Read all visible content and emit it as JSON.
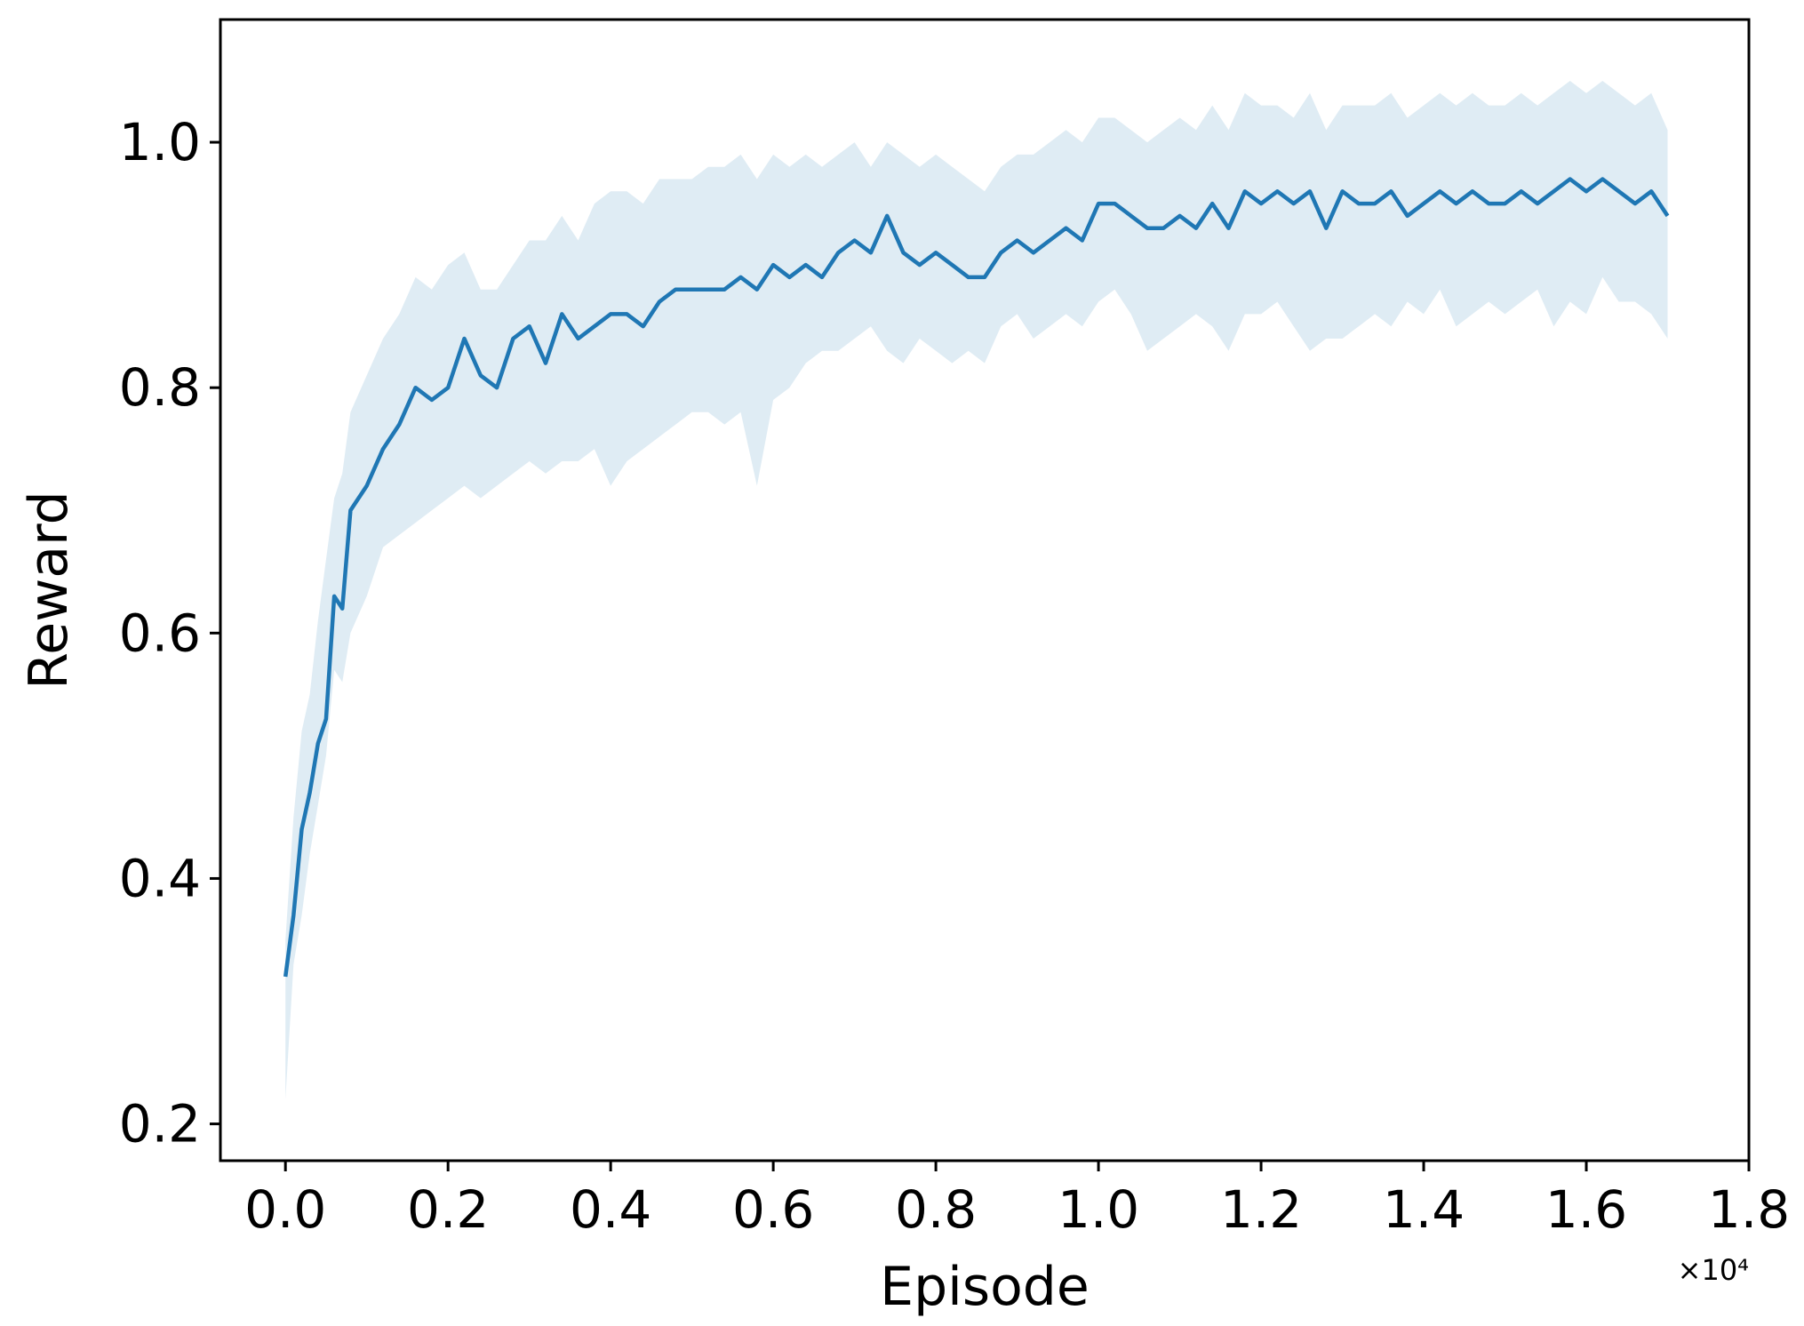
{
  "chart_data": {
    "type": "line",
    "title": "",
    "xlabel": "Episode",
    "ylabel": "Reward",
    "x_offset_label": "×10⁴",
    "xlim": [
      -0.08,
      1.8
    ],
    "ylim": [
      0.17,
      1.1
    ],
    "x_ticks": [
      0.0,
      0.2,
      0.4,
      0.6,
      0.8,
      1.0,
      1.2,
      1.4,
      1.6,
      1.8
    ],
    "x_tick_labels": [
      "0.0",
      "0.2",
      "0.4",
      "0.6",
      "0.8",
      "1.0",
      "1.2",
      "1.4",
      "1.6",
      "1.8"
    ],
    "y_ticks": [
      0.2,
      0.4,
      0.6,
      0.8,
      1.0
    ],
    "y_tick_labels": [
      "0.2",
      "0.4",
      "0.6",
      "0.8",
      "1.0"
    ],
    "grid": false,
    "legend": "none",
    "colors": {
      "line": "#1f77b4",
      "band": "#1f77b4",
      "band_opacity": 0.14
    },
    "series": [
      {
        "x": [
          0.0,
          0.01,
          0.02,
          0.03,
          0.04,
          0.05,
          0.06,
          0.07,
          0.08,
          0.1,
          0.12,
          0.14,
          0.16,
          0.18,
          0.2,
          0.22,
          0.24,
          0.26,
          0.28,
          0.3,
          0.32,
          0.34,
          0.36,
          0.38,
          0.4,
          0.42,
          0.44,
          0.46,
          0.48,
          0.5,
          0.52,
          0.54,
          0.56,
          0.58,
          0.6,
          0.62,
          0.64,
          0.66,
          0.68,
          0.7,
          0.72,
          0.74,
          0.76,
          0.78,
          0.8,
          0.82,
          0.84,
          0.86,
          0.88,
          0.9,
          0.92,
          0.94,
          0.96,
          0.98,
          1.0,
          1.02,
          1.04,
          1.06,
          1.08,
          1.1,
          1.12,
          1.14,
          1.16,
          1.18,
          1.2,
          1.22,
          1.24,
          1.26,
          1.28,
          1.3,
          1.32,
          1.34,
          1.36,
          1.38,
          1.4,
          1.42,
          1.44,
          1.46,
          1.48,
          1.5,
          1.52,
          1.54,
          1.56,
          1.58,
          1.6,
          1.62,
          1.64,
          1.66,
          1.68,
          1.7
        ],
        "y": [
          0.32,
          0.37,
          0.44,
          0.47,
          0.51,
          0.53,
          0.63,
          0.62,
          0.7,
          0.72,
          0.75,
          0.77,
          0.8,
          0.79,
          0.8,
          0.84,
          0.81,
          0.8,
          0.84,
          0.85,
          0.82,
          0.86,
          0.84,
          0.85,
          0.86,
          0.86,
          0.85,
          0.87,
          0.88,
          0.88,
          0.88,
          0.88,
          0.89,
          0.88,
          0.9,
          0.89,
          0.9,
          0.89,
          0.91,
          0.92,
          0.91,
          0.94,
          0.91,
          0.9,
          0.91,
          0.9,
          0.89,
          0.89,
          0.91,
          0.92,
          0.91,
          0.92,
          0.93,
          0.92,
          0.95,
          0.95,
          0.94,
          0.93,
          0.93,
          0.94,
          0.93,
          0.95,
          0.93,
          0.96,
          0.95,
          0.96,
          0.95,
          0.96,
          0.93,
          0.96,
          0.95,
          0.95,
          0.96,
          0.94,
          0.95,
          0.96,
          0.95,
          0.96,
          0.95,
          0.95,
          0.96,
          0.95,
          0.96,
          0.97,
          0.96,
          0.97,
          0.96,
          0.95,
          0.96,
          0.94
        ],
        "lower": [
          0.22,
          0.33,
          0.37,
          0.42,
          0.46,
          0.5,
          0.57,
          0.56,
          0.6,
          0.63,
          0.67,
          0.68,
          0.69,
          0.7,
          0.71,
          0.72,
          0.71,
          0.72,
          0.73,
          0.74,
          0.73,
          0.74,
          0.74,
          0.75,
          0.72,
          0.74,
          0.75,
          0.76,
          0.77,
          0.78,
          0.78,
          0.77,
          0.78,
          0.72,
          0.79,
          0.8,
          0.82,
          0.83,
          0.83,
          0.84,
          0.85,
          0.83,
          0.82,
          0.84,
          0.83,
          0.82,
          0.83,
          0.82,
          0.85,
          0.86,
          0.84,
          0.85,
          0.86,
          0.85,
          0.87,
          0.88,
          0.86,
          0.83,
          0.84,
          0.85,
          0.86,
          0.85,
          0.83,
          0.86,
          0.86,
          0.87,
          0.85,
          0.83,
          0.84,
          0.84,
          0.85,
          0.86,
          0.85,
          0.87,
          0.86,
          0.88,
          0.85,
          0.86,
          0.87,
          0.86,
          0.87,
          0.88,
          0.85,
          0.87,
          0.86,
          0.89,
          0.87,
          0.87,
          0.86,
          0.84
        ],
        "upper": [
          0.35,
          0.45,
          0.52,
          0.55,
          0.61,
          0.66,
          0.71,
          0.73,
          0.78,
          0.81,
          0.84,
          0.86,
          0.89,
          0.88,
          0.9,
          0.91,
          0.88,
          0.88,
          0.9,
          0.92,
          0.92,
          0.94,
          0.92,
          0.95,
          0.96,
          0.96,
          0.95,
          0.97,
          0.97,
          0.97,
          0.98,
          0.98,
          0.99,
          0.97,
          0.99,
          0.98,
          0.99,
          0.98,
          0.99,
          1.0,
          0.98,
          1.0,
          0.99,
          0.98,
          0.99,
          0.98,
          0.97,
          0.96,
          0.98,
          0.99,
          0.99,
          1.0,
          1.01,
          1.0,
          1.02,
          1.02,
          1.01,
          1.0,
          1.01,
          1.02,
          1.01,
          1.03,
          1.01,
          1.04,
          1.03,
          1.03,
          1.02,
          1.04,
          1.01,
          1.03,
          1.03,
          1.03,
          1.04,
          1.02,
          1.03,
          1.04,
          1.03,
          1.04,
          1.03,
          1.03,
          1.04,
          1.03,
          1.04,
          1.05,
          1.04,
          1.05,
          1.04,
          1.03,
          1.04,
          1.01
        ]
      }
    ]
  }
}
